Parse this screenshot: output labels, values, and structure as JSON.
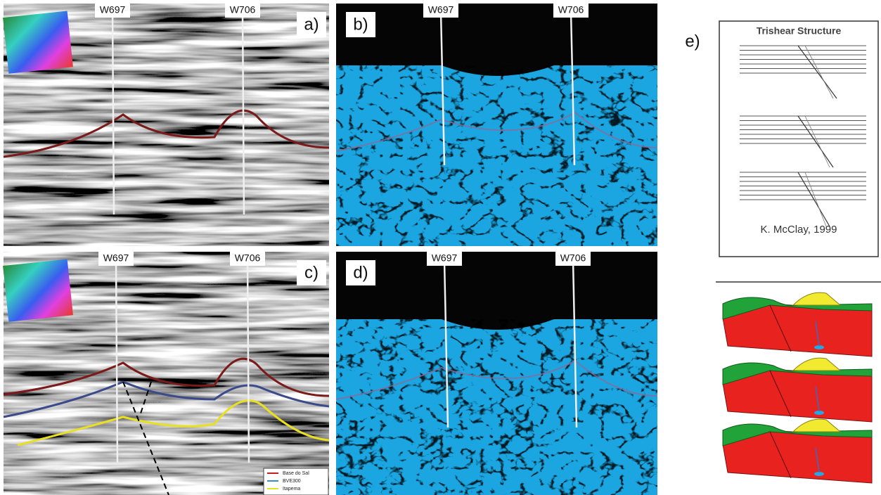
{
  "panels": [
    {
      "label": "a)",
      "wells": [
        "W697",
        "W706"
      ]
    },
    {
      "label": "b)",
      "wells": [
        "W697",
        "W706"
      ]
    },
    {
      "label": "c)",
      "wells": [
        "W697",
        "W706"
      ]
    },
    {
      "label": "d)",
      "wells": [
        "W697",
        "W706"
      ]
    }
  ],
  "legend": [
    "Base do Sal",
    "BVE300",
    "Itapema"
  ],
  "panel_e": {
    "label": "e)",
    "title": "Trishear Structure",
    "credit": "K. McClay, 1999"
  }
}
